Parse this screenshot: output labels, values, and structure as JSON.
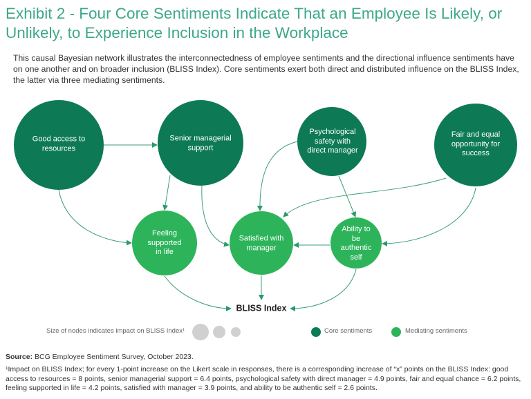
{
  "title": "Exhibit 2 - Four Core Sentiments Indicate That an Employee Is Likely, or Unlikely, to Experience Inclusion in the Workplace",
  "subtitle": "This causal Bayesian network illustrates the interconnectedness of employee sentiments and the directional influence sentiments have on one another and on broader inclusion (BLISS Index). Core sentiments exert both direct and distributed influence on the BLISS Index, the latter via three mediating sentiments.",
  "colors": {
    "core": "#0d7a55",
    "mediating": "#2db45a",
    "title": "#3da88a",
    "size_legend": "#d0d0d0"
  },
  "nodes": {
    "good_access": {
      "label": "Good access to resources",
      "type": "core",
      "impact": 8
    },
    "senior": {
      "label": "Senior managerial support",
      "type": "core",
      "impact": 6.4
    },
    "psych": {
      "label": "Psychological safety with direct manager",
      "type": "core",
      "impact": 4.9
    },
    "fair": {
      "label": "Fair and equal opportunity for success",
      "type": "core",
      "impact": 6.2
    },
    "feeling": {
      "label": "Feeling supported in life",
      "type": "mediating",
      "impact": 4.2
    },
    "satisfied": {
      "label": "Satisfied with manager",
      "type": "mediating",
      "impact": 3.9
    },
    "ability": {
      "label": "Ability to be authentic self",
      "type": "mediating",
      "impact": 2.6
    },
    "bliss": {
      "label": "BLISS Index"
    }
  },
  "edges": [
    [
      "good_access",
      "senior"
    ],
    [
      "good_access",
      "feeling"
    ],
    [
      "senior",
      "feeling"
    ],
    [
      "senior",
      "satisfied"
    ],
    [
      "psych",
      "satisfied"
    ],
    [
      "psych",
      "ability"
    ],
    [
      "fair",
      "satisfied"
    ],
    [
      "fair",
      "ability"
    ],
    [
      "ability",
      "satisfied"
    ],
    [
      "feeling",
      "bliss"
    ],
    [
      "satisfied",
      "bliss"
    ],
    [
      "ability",
      "bliss"
    ]
  ],
  "legend": {
    "size_note": "Size of nodes indicates impact on BLISS Index¹",
    "core": "Core sentiments",
    "mediating": "Mediating sentiments"
  },
  "source_label": "Source:",
  "source": " BCG Employee Sentiment Survey, October 2023.",
  "footnote": "¹Impact on BLISS Index; for every 1-point increase on the Likert scale in responses, there is a corresponding increase of “x” points on the BLISS Index: good access to resources = 8 points, senior managerial support = 6.4 points, psychological safety with direct manager = 4.9 points, fair and equal chance = 6.2 points, feeling supported in life = 4.2 points, satisfied with manager = 3.9 points, and ability to be authentic self = 2.6 points."
}
